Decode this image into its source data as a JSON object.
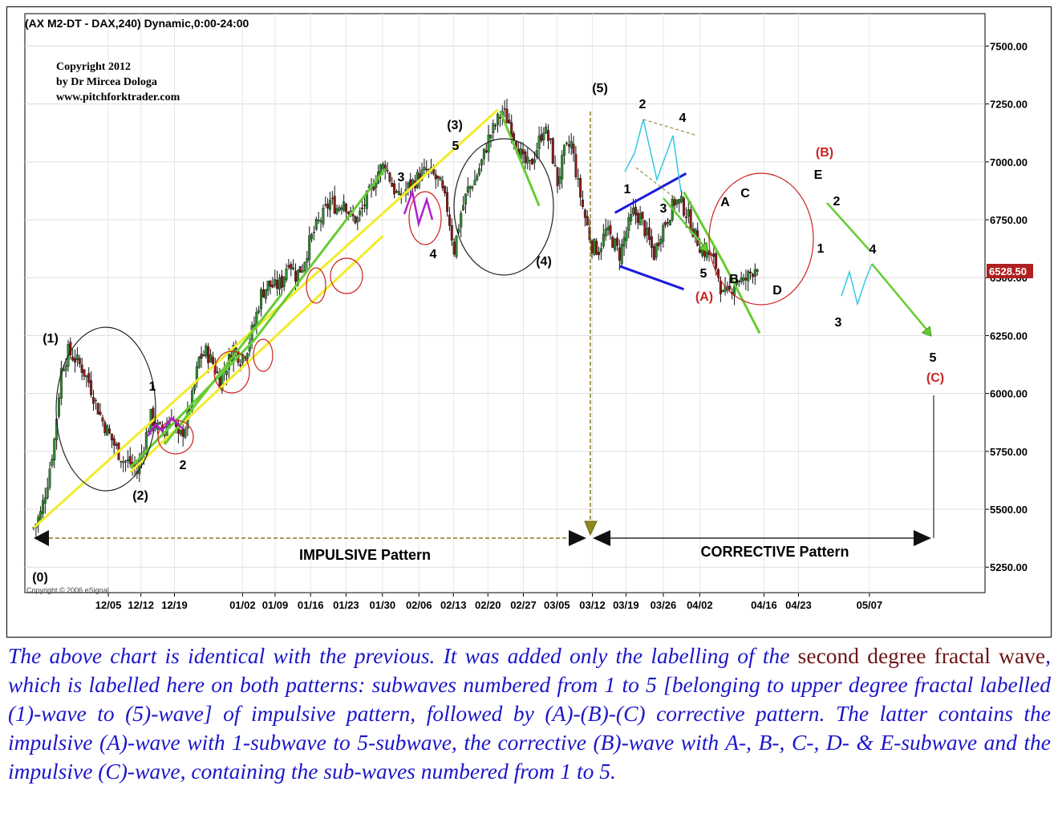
{
  "chart_data": {
    "type": "candlestick",
    "title": "(AX M2-DT - DAX,240) Dynamic,0:00-24:00",
    "copyright_lines": [
      "Copyright 2012",
      "by Dr Mircea Dologa",
      "www.pitchforktrader.com"
    ],
    "esignal_note": "Copyright © 2006 eSignal.",
    "ylim": [
      5140,
      7640
    ],
    "y_ticks": [
      "7500.00",
      "7250.00",
      "7000.00",
      "6750.00",
      "6500.00",
      "6250.00",
      "6000.00",
      "5750.00",
      "5500.00",
      "5250.00"
    ],
    "y_tick_values": [
      7500,
      7250,
      7000,
      6750,
      6500,
      6250,
      6000,
      5750,
      5500,
      5250
    ],
    "x_ticks": [
      "12/05",
      "12/12",
      "12/19",
      "01/02",
      "01/09",
      "01/16",
      "01/23",
      "01/30",
      "02/06",
      "02/13",
      "02/20",
      "02/27",
      "03/05",
      "03/12",
      "03/19",
      "03/26",
      "04/02",
      "04/16",
      "04/23",
      "05/07"
    ],
    "last_price": "6528.50",
    "colors": {
      "up": "#2e8b2e",
      "down": "#8b1a1a",
      "yellow": "#f2ec2a",
      "green": "#66cc33",
      "cyan": "#33c6e6",
      "purple": "#b020d0",
      "red": "#cc2222",
      "blue": "#1a1ae0",
      "olive": "#8a7a20",
      "price_tag": "#b02020"
    },
    "price_path": [
      [
        0,
        5420
      ],
      [
        3,
        5480
      ],
      [
        6,
        5620
      ],
      [
        9,
        5800
      ],
      [
        12,
        6100
      ],
      [
        15,
        6180
      ],
      [
        18,
        6150
      ],
      [
        21,
        6110
      ],
      [
        24,
        6050
      ],
      [
        27,
        5960
      ],
      [
        30,
        5880
      ],
      [
        33,
        5820
      ],
      [
        36,
        5760
      ],
      [
        39,
        5710
      ],
      [
        42,
        5700
      ],
      [
        45,
        5660
      ],
      [
        48,
        5780
      ],
      [
        51,
        5900
      ],
      [
        54,
        5850
      ],
      [
        57,
        5830
      ],
      [
        60,
        5920
      ],
      [
        63,
        5800
      ],
      [
        66,
        5860
      ],
      [
        69,
        5980
      ],
      [
        72,
        6150
      ],
      [
        75,
        6180
      ],
      [
        78,
        6130
      ],
      [
        81,
        6060
      ],
      [
        84,
        6120
      ],
      [
        87,
        6200
      ],
      [
        90,
        6150
      ],
      [
        93,
        6200
      ],
      [
        96,
        6300
      ],
      [
        99,
        6430
      ],
      [
        102,
        6470
      ],
      [
        105,
        6460
      ],
      [
        108,
        6480
      ],
      [
        111,
        6580
      ],
      [
        114,
        6510
      ],
      [
        117,
        6550
      ],
      [
        120,
        6650
      ],
      [
        123,
        6720
      ],
      [
        126,
        6770
      ],
      [
        129,
        6830
      ],
      [
        132,
        6800
      ],
      [
        135,
        6840
      ],
      [
        138,
        6760
      ],
      [
        141,
        6750
      ],
      [
        144,
        6820
      ],
      [
        147,
        6880
      ],
      [
        150,
        6960
      ],
      [
        153,
        6990
      ],
      [
        156,
        6900
      ],
      [
        159,
        6840
      ],
      [
        162,
        6880
      ],
      [
        165,
        6910
      ],
      [
        168,
        6940
      ],
      [
        171,
        6960
      ],
      [
        174,
        6940
      ],
      [
        177,
        6900
      ],
      [
        180,
        6800
      ],
      [
        183,
        6620
      ],
      [
        186,
        6780
      ],
      [
        189,
        6880
      ],
      [
        192,
        6920
      ],
      [
        195,
        7000
      ],
      [
        198,
        7100
      ],
      [
        201,
        7160
      ],
      [
        204,
        7220
      ],
      [
        207,
        7170
      ],
      [
        210,
        7090
      ],
      [
        213,
        7000
      ],
      [
        216,
        6980
      ],
      [
        219,
        7060
      ],
      [
        222,
        7150
      ],
      [
        225,
        7070
      ],
      [
        228,
        6910
      ],
      [
        231,
        7040
      ],
      [
        234,
        7080
      ],
      [
        237,
        6900
      ],
      [
        240,
        6760
      ],
      [
        243,
        6640
      ],
      [
        246,
        6620
      ],
      [
        249,
        6700
      ],
      [
        252,
        6660
      ],
      [
        255,
        6600
      ],
      [
        258,
        6700
      ],
      [
        261,
        6780
      ],
      [
        264,
        6760
      ],
      [
        267,
        6680
      ],
      [
        270,
        6600
      ],
      [
        273,
        6700
      ],
      [
        276,
        6760
      ],
      [
        279,
        6830
      ],
      [
        282,
        6820
      ],
      [
        285,
        6760
      ],
      [
        288,
        6680
      ],
      [
        291,
        6620
      ],
      [
        294,
        6600
      ],
      [
        297,
        6550
      ],
      [
        300,
        6420
      ],
      [
        303,
        6440
      ],
      [
        306,
        6500
      ],
      [
        309,
        6480
      ],
      [
        312,
        6520
      ],
      [
        315,
        6560
      ]
    ],
    "trend_lines": [
      {
        "color": "yellow",
        "points": [
          [
            5420,
            0
          ],
          [
            7225,
            202
          ]
        ]
      },
      {
        "color": "yellow",
        "points": [
          [
            5660,
            42
          ],
          [
            6680,
            152
          ]
        ]
      },
      {
        "color": "green",
        "points": [
          [
            5680,
            42
          ],
          [
            6230,
            96
          ]
        ]
      },
      {
        "color": "green",
        "points": [
          [
            5780,
            57
          ],
          [
            6430,
            108
          ]
        ]
      },
      {
        "color": "green",
        "points": [
          [
            6230,
            96
          ],
          [
            6970,
            153
          ]
        ]
      },
      {
        "color": "green",
        "points": [
          [
            7220,
            203
          ],
          [
            6810,
            220
          ]
        ]
      },
      {
        "color": "green",
        "points": [
          [
            6870,
            283
          ],
          [
            6570,
            300
          ]
        ]
      },
      {
        "color": "green",
        "points": [
          [
            6570,
            300
          ],
          [
            6260,
            316
          ]
        ]
      },
      {
        "color": "blue",
        "points": [
          [
            6780,
            253
          ],
          [
            6950,
            284
          ]
        ]
      },
      {
        "color": "blue",
        "points": [
          [
            6550,
            255
          ],
          [
            6450,
            283
          ]
        ]
      }
    ],
    "wave_labels": [
      {
        "text": "(0)"
      },
      {
        "text": "(1)"
      },
      {
        "text": "(2)"
      },
      {
        "text": "(3)"
      },
      {
        "text": "(4)"
      },
      {
        "text": "(5)"
      },
      {
        "text": "1"
      },
      {
        "text": "2"
      },
      {
        "text": "3"
      },
      {
        "text": "4"
      },
      {
        "text": "5"
      },
      {
        "text": "1"
      },
      {
        "text": "2"
      },
      {
        "text": "3"
      },
      {
        "text": "4"
      },
      {
        "text": "5"
      },
      {
        "text": "(A)"
      },
      {
        "text": "A"
      },
      {
        "text": "B"
      },
      {
        "text": "C"
      },
      {
        "text": "D"
      },
      {
        "text": "E"
      },
      {
        "text": "(B)"
      },
      {
        "text": "1"
      },
      {
        "text": "2"
      },
      {
        "text": "3"
      },
      {
        "text": "4"
      },
      {
        "text": "5"
      },
      {
        "text": "(C)"
      }
    ],
    "pattern_labels": {
      "impulsive": "IMPULSIVE Pattern",
      "corrective": "CORRECTIVE Pattern"
    }
  },
  "caption": {
    "p1": "The above chart is identical with the previous. It was added only the labelling of the ",
    "highlight": "second degree fractal wave",
    "p2": ", which is labelled here on both patterns: subwaves numbered from 1 to 5 [belonging to upper degree fractal labelled (1)-wave to (5)-wave] of impulsive pattern, followed by (A)-(B)-(C) corrective pattern. The latter contains the impulsive (A)-wave with 1-subwave to 5-subwave, the corrective (B)-wave with A-, B-, C-, D- & E-subwave and the impulsive (C)-wave, containing the sub-waves numbered from 1 to 5."
  }
}
